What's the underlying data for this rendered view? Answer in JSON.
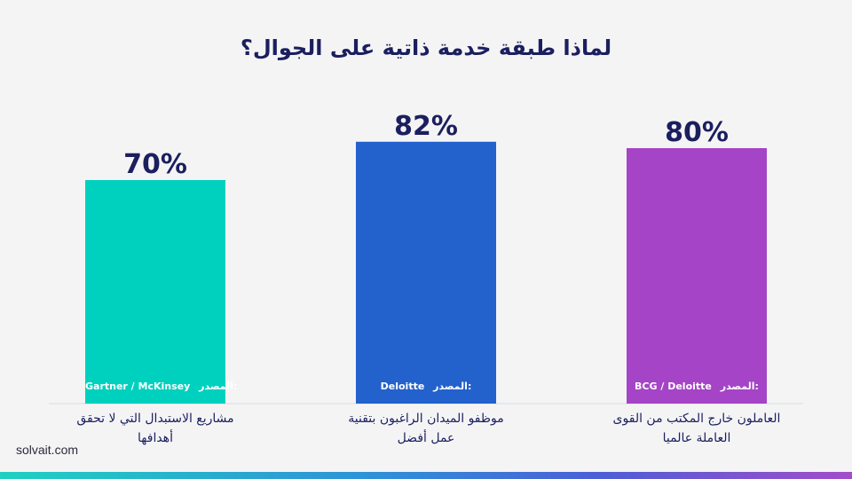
{
  "title": "لماذا طبقة خدمة ذاتية على الجوال؟",
  "brand": "solvait.com",
  "chart_data": {
    "type": "bar",
    "ylim": [
      0,
      100
    ],
    "grid": false,
    "categories": [
      "مشاريع الاستبدال التي لا تحقق أهدافها",
      "موظفو الميدان الراغبون بتقنية عمل أفضل",
      "العاملون خارج المكتب من القوى العاملة عالميا"
    ],
    "values": [
      70,
      82,
      80
    ],
    "value_labels": [
      "70%",
      "82%",
      "80%"
    ],
    "sources": [
      "Gartner / McKinsey",
      "Deloitte",
      "BCG / Deloitte"
    ],
    "source_prefix": "المصدر:",
    "colors": [
      "#00d1bf",
      "#2361cc",
      "#a544c6"
    ]
  }
}
